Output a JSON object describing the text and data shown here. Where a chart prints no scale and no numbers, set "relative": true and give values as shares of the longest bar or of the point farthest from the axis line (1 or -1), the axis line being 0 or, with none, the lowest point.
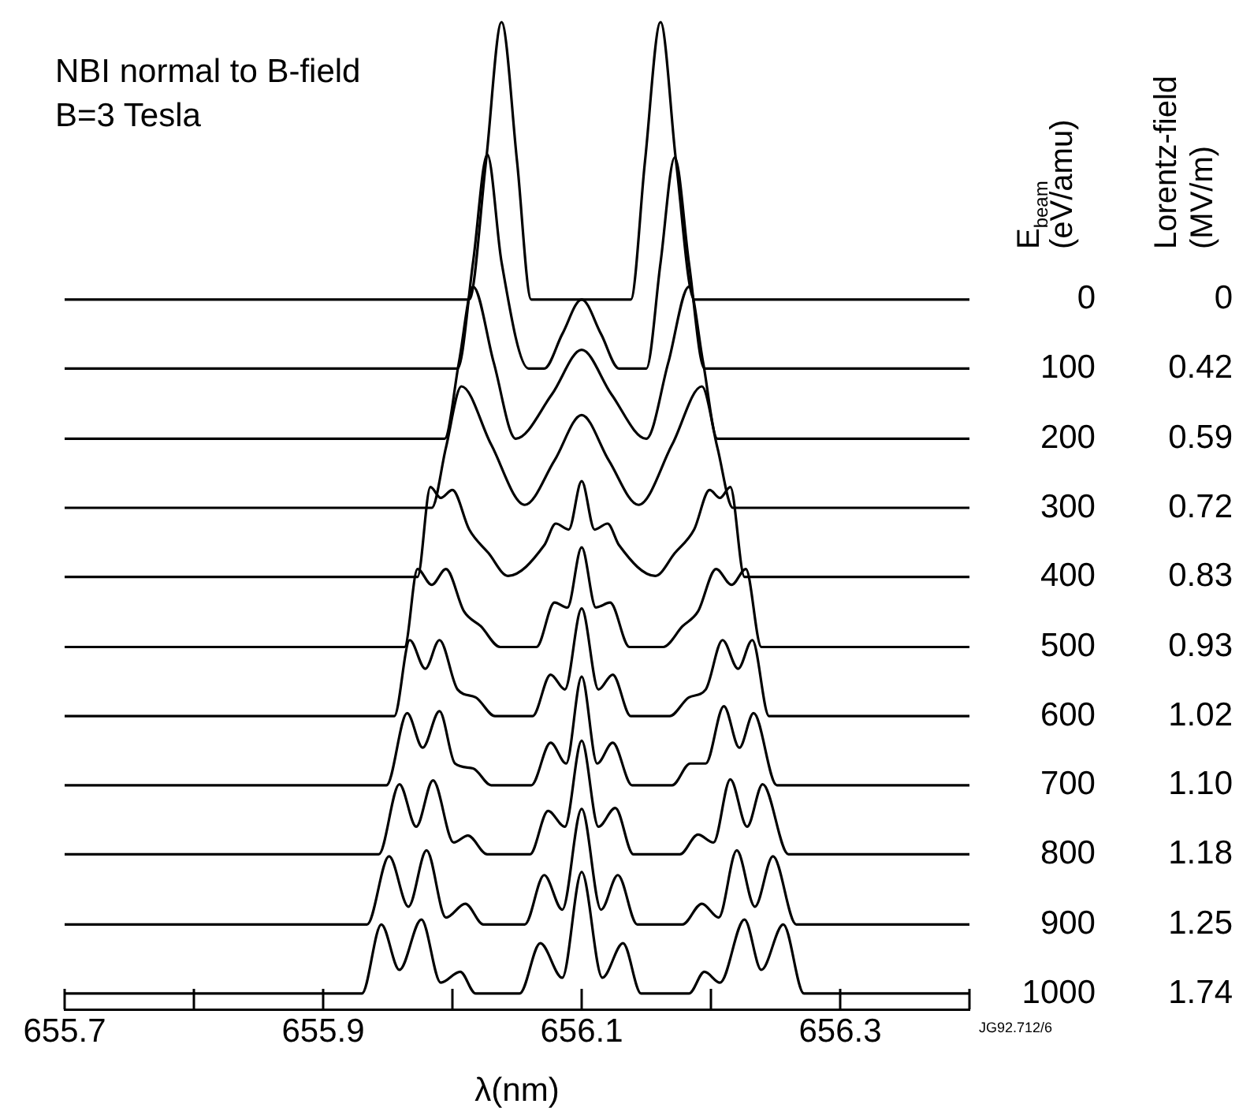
{
  "chart_data": {
    "type": "line",
    "title": "NBI normal to B-field",
    "subtitle": "B=3 Tesla",
    "xlabel": "λ(nm)",
    "relative": true,
    "legend": false,
    "grid": false,
    "marker": "none",
    "line_style": "solid",
    "xlim": [
      655.7,
      656.4
    ],
    "xticks": [
      655.7,
      {
        "value": 655.8,
        "label": null
      },
      655.9,
      {
        "value": 656.0,
        "label": null
      },
      656.1,
      {
        "value": 656.2,
        "label": null
      },
      656.3,
      {
        "value": 656.4,
        "label": null
      }
    ],
    "series": [
      {
        "name": "0",
        "color": "#000000",
        "x": [
          655.7,
          656.013,
          656.026,
          656.038,
          656.05,
          656.061,
          656.138,
          656.149,
          656.161,
          656.173,
          656.187,
          656.4
        ],
        "values": [
          0.719,
          0.719,
          0.859,
          1,
          0.859,
          0.719,
          0.719,
          0.859,
          1,
          0.859,
          0.719,
          0.719
        ]
      },
      {
        "name": "100",
        "color": "#000000",
        "x": [
          655.7,
          656.004,
          656.016,
          656.027,
          656.038,
          656.059,
          656.071,
          656.085,
          656.1,
          656.115,
          656.129,
          656.15,
          656.161,
          656.172,
          656.183,
          656.195,
          656.4
        ],
        "values": [
          0.649,
          0.649,
          0.757,
          0.866,
          0.757,
          0.649,
          0.649,
          0.684,
          0.719,
          0.684,
          0.649,
          0.649,
          0.756,
          0.863,
          0.756,
          0.649,
          0.649
        ]
      },
      {
        "name": "200",
        "color": "#000000",
        "x": [
          655.7,
          655.994,
          656.005,
          656.016,
          656.032,
          656.049,
          656.077,
          656.1,
          656.123,
          656.15,
          656.167,
          656.183,
          656.194,
          656.205,
          656.4
        ],
        "values": [
          0.578,
          0.578,
          0.655,
          0.732,
          0.655,
          0.578,
          0.623,
          0.668,
          0.623,
          0.578,
          0.655,
          0.732,
          0.655,
          0.578,
          0.578
        ]
      },
      {
        "name": "300",
        "color": "#000000",
        "x": [
          655.7,
          655.984,
          655.995,
          656.007,
          656.03,
          656.056,
          656.079,
          656.1,
          656.121,
          656.144,
          656.17,
          656.193,
          656.205,
          656.217,
          656.4
        ],
        "values": [
          0.508,
          0.508,
          0.569,
          0.631,
          0.572,
          0.511,
          0.556,
          0.602,
          0.556,
          0.511,
          0.572,
          0.631,
          0.569,
          0.508,
          0.508
        ]
      },
      {
        "name": "400",
        "color": "#000000",
        "x": [
          655.7,
          655.973,
          655.983,
          655.991,
          656.0,
          656.013,
          656.028,
          656.043,
          656.071,
          656.08,
          656.09,
          656.1,
          656.11,
          656.12,
          656.129,
          656.157,
          656.172,
          656.187,
          656.199,
          656.207,
          656.215,
          656.226,
          656.4
        ],
        "values": [
          0.438,
          0.438,
          0.529,
          0.518,
          0.526,
          0.486,
          0.462,
          0.439,
          0.47,
          0.492,
          0.486,
          0.535,
          0.486,
          0.492,
          0.47,
          0.439,
          0.462,
          0.486,
          0.526,
          0.518,
          0.529,
          0.438,
          0.438
        ]
      },
      {
        "name": "500",
        "color": "#000000",
        "x": [
          655.7,
          655.963,
          655.973,
          655.984,
          655.995,
          656.009,
          656.022,
          656.037,
          656.065,
          656.079,
          656.089,
          656.1,
          656.111,
          656.122,
          656.137,
          656.163,
          656.178,
          656.19,
          656.204,
          656.216,
          656.227,
          656.239,
          656.4
        ],
        "values": [
          0.367,
          0.367,
          0.446,
          0.43,
          0.446,
          0.403,
          0.388,
          0.367,
          0.367,
          0.412,
          0.407,
          0.468,
          0.407,
          0.412,
          0.367,
          0.367,
          0.388,
          0.403,
          0.446,
          0.43,
          0.446,
          0.367,
          0.367
        ]
      },
      {
        "name": "600",
        "color": "#000000",
        "x": [
          655.7,
          655.955,
          655.967,
          655.979,
          655.99,
          656.004,
          656.018,
          656.033,
          656.062,
          656.076,
          656.087,
          656.1,
          656.113,
          656.124,
          656.138,
          656.168,
          656.183,
          656.196,
          656.209,
          656.221,
          656.232,
          656.245,
          656.4
        ],
        "values": [
          0.297,
          0.297,
          0.374,
          0.345,
          0.374,
          0.324,
          0.316,
          0.297,
          0.297,
          0.339,
          0.324,
          0.406,
          0.324,
          0.339,
          0.297,
          0.297,
          0.316,
          0.324,
          0.374,
          0.345,
          0.374,
          0.297,
          0.297
        ]
      },
      {
        "name": "700",
        "color": "#000000",
        "x": [
          655.7,
          655.949,
          655.965,
          655.977,
          655.99,
          656.002,
          656.016,
          656.03,
          656.061,
          656.076,
          656.088,
          656.1,
          656.112,
          656.124,
          656.139,
          656.17,
          656.184,
          656.196,
          656.21,
          656.222,
          656.233,
          656.251,
          656.4
        ],
        "values": [
          0.227,
          0.227,
          0.3,
          0.265,
          0.302,
          0.249,
          0.244,
          0.227,
          0.227,
          0.27,
          0.249,
          0.337,
          0.249,
          0.27,
          0.227,
          0.227,
          0.249,
          0.249,
          0.307,
          0.265,
          0.3,
          0.227,
          0.227
        ]
      },
      {
        "name": "800",
        "color": "#000000",
        "x": [
          655.7,
          655.943,
          655.959,
          655.972,
          655.985,
          656.001,
          656.012,
          656.027,
          656.06,
          656.074,
          656.087,
          656.1,
          656.113,
          656.126,
          656.14,
          656.176,
          656.19,
          656.202,
          656.215,
          656.228,
          656.24,
          656.26,
          656.4
        ],
        "values": [
          0.157,
          0.157,
          0.228,
          0.185,
          0.232,
          0.169,
          0.176,
          0.157,
          0.157,
          0.201,
          0.185,
          0.272,
          0.185,
          0.204,
          0.157,
          0.157,
          0.177,
          0.169,
          0.233,
          0.185,
          0.228,
          0.157,
          0.157
        ]
      },
      {
        "name": "900",
        "color": "#000000",
        "x": [
          655.7,
          655.934,
          655.951,
          655.966,
          655.98,
          655.995,
          656.01,
          656.024,
          656.056,
          656.071,
          656.085,
          656.1,
          656.115,
          656.128,
          656.143,
          656.178,
          656.193,
          656.206,
          656.22,
          656.234,
          656.248,
          656.266,
          656.4
        ],
        "values": [
          0.086,
          0.086,
          0.155,
          0.104,
          0.161,
          0.093,
          0.107,
          0.086,
          0.086,
          0.136,
          0.101,
          0.203,
          0.101,
          0.136,
          0.086,
          0.086,
          0.107,
          0.093,
          0.161,
          0.104,
          0.155,
          0.086,
          0.086
        ]
      },
      {
        "name": "1000",
        "color": "#000000",
        "x": [
          655.7,
          655.93,
          655.945,
          655.959,
          655.976,
          655.991,
          656.006,
          656.018,
          656.052,
          656.068,
          656.085,
          656.1,
          656.116,
          656.132,
          656.146,
          656.183,
          656.195,
          656.207,
          656.226,
          656.239,
          656.256,
          656.272,
          656.4
        ],
        "values": [
          0.016,
          0.016,
          0.086,
          0.04,
          0.091,
          0.027,
          0.038,
          0.016,
          0.016,
          0.067,
          0.032,
          0.139,
          0.032,
          0.067,
          0.016,
          0.016,
          0.038,
          0.027,
          0.091,
          0.04,
          0.086,
          0.016,
          0.016
        ]
      }
    ],
    "annotations": [
      "E$_{beam}$ (eV/amu)",
      "Lorentz-field (MV/m)",
      "0",
      "0.42",
      "0.59",
      "0.72",
      "0.83",
      "0.93",
      "1.02",
      "1.10",
      "1.18",
      "1.25",
      "1.74",
      "JG92.712/6"
    ]
  }
}
